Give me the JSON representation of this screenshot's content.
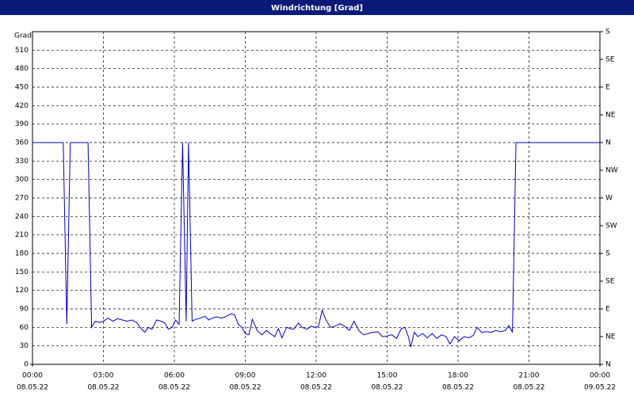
{
  "chart_data": {
    "type": "line",
    "title": "Windrichtung [Grad]",
    "y_label": "Grad",
    "color": "#0000c8",
    "grid": true,
    "ylim": [
      0,
      540
    ],
    "yticks": [
      0,
      30,
      60,
      90,
      120,
      150,
      180,
      210,
      240,
      270,
      300,
      330,
      360,
      390,
      420,
      450,
      480,
      510
    ],
    "y2lim": [
      0,
      540
    ],
    "y2ticks": [
      {
        "value": 0,
        "label": "N"
      },
      {
        "value": 45,
        "label": "NE"
      },
      {
        "value": 90,
        "label": "E"
      },
      {
        "value": 135,
        "label": "SE"
      },
      {
        "value": 180,
        "label": "S"
      },
      {
        "value": 225,
        "label": "SW"
      },
      {
        "value": 270,
        "label": "W"
      },
      {
        "value": 315,
        "label": "NW"
      },
      {
        "value": 360,
        "label": "N"
      },
      {
        "value": 405,
        "label": "NE"
      },
      {
        "value": 450,
        "label": "E"
      },
      {
        "value": 495,
        "label": "SE"
      },
      {
        "value": 540,
        "label": "S"
      }
    ],
    "xlim": [
      0,
      24
    ],
    "xticks": [
      {
        "value": 0,
        "label": "00:00",
        "date": "08.05.22"
      },
      {
        "value": 3,
        "label": "03:00",
        "date": "08.05.22"
      },
      {
        "value": 6,
        "label": "06:00",
        "date": "08.05.22"
      },
      {
        "value": 9,
        "label": "09:00",
        "date": "08.05.22"
      },
      {
        "value": 12,
        "label": "12:00",
        "date": "08.05.22"
      },
      {
        "value": 15,
        "label": "15:00",
        "date": "08.05.22"
      },
      {
        "value": 18,
        "label": "18:00",
        "date": "08.05.22"
      },
      {
        "value": 21,
        "label": "21:00",
        "date": "08.05.22"
      },
      {
        "value": 24,
        "label": "00:00",
        "date": "09.05.22"
      }
    ],
    "x": [
      0,
      1.3,
      1.45,
      1.6,
      2.35,
      2.5,
      2.65,
      2.85,
      3.0,
      3.2,
      3.4,
      3.6,
      3.8,
      4.0,
      4.2,
      4.4,
      4.6,
      4.75,
      4.9,
      5.05,
      5.25,
      5.45,
      5.6,
      5.75,
      5.9,
      6.05,
      6.2,
      6.35,
      6.5,
      6.6,
      6.75,
      6.9,
      7.1,
      7.3,
      7.45,
      7.6,
      7.8,
      8.0,
      8.2,
      8.4,
      8.55,
      8.7,
      8.85,
      9.0,
      9.15,
      9.3,
      9.5,
      9.7,
      9.9,
      10.05,
      10.25,
      10.4,
      10.55,
      10.75,
      10.9,
      11.05,
      11.25,
      11.4,
      11.6,
      11.8,
      11.95,
      12.1,
      12.25,
      12.4,
      12.6,
      12.8,
      13.0,
      13.2,
      13.4,
      13.6,
      13.8,
      14.0,
      14.2,
      14.4,
      14.6,
      14.8,
      15.0,
      15.2,
      15.4,
      15.6,
      15.75,
      15.9,
      16.0,
      16.15,
      16.3,
      16.5,
      16.7,
      16.9,
      17.1,
      17.3,
      17.5,
      17.65,
      17.85,
      18.05,
      18.25,
      18.45,
      18.65,
      18.8,
      19.0,
      19.2,
      19.4,
      19.6,
      19.8,
      20.0,
      20.15,
      20.3,
      20.45,
      24
    ],
    "values": [
      360,
      360,
      65,
      360,
      360,
      60,
      70,
      68,
      70,
      75,
      70,
      74,
      72,
      70,
      72,
      68,
      58,
      52,
      60,
      57,
      72,
      70,
      67,
      57,
      60,
      72,
      65,
      360,
      70,
      360,
      70,
      73,
      75,
      78,
      72,
      75,
      77,
      75,
      78,
      82,
      80,
      65,
      60,
      50,
      48,
      73,
      55,
      48,
      55,
      50,
      45,
      58,
      43,
      60,
      58,
      57,
      67,
      60,
      57,
      62,
      60,
      62,
      88,
      73,
      60,
      62,
      66,
      62,
      55,
      70,
      55,
      48,
      50,
      52,
      53,
      45,
      46,
      48,
      42,
      58,
      60,
      45,
      28,
      52,
      45,
      50,
      43,
      50,
      42,
      48,
      45,
      33,
      45,
      38,
      45,
      43,
      47,
      60,
      52,
      53,
      52,
      55,
      53,
      55,
      63,
      52,
      360,
      360
    ]
  }
}
